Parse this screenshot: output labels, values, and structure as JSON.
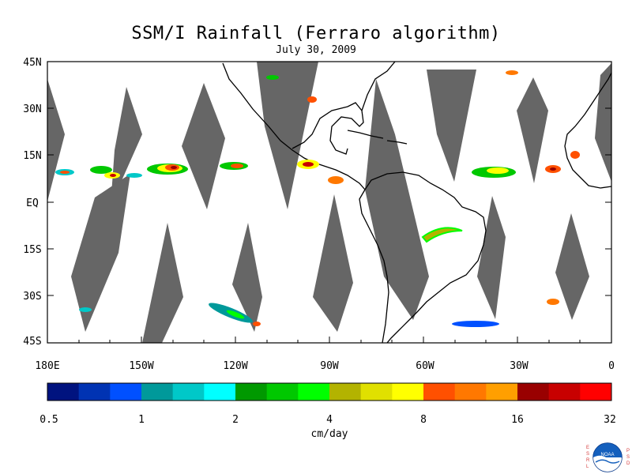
{
  "header": {
    "title": "SSM/I Rainfall (Ferraro algorithm)",
    "date": "July 30, 2009"
  },
  "map": {
    "lat_labels": [
      "45N",
      "30N",
      "15N",
      "EQ",
      "15S",
      "30S",
      "45S"
    ],
    "lon_labels": [
      "180E",
      "150W",
      "120W",
      "90W",
      "60W",
      "30W",
      "0"
    ],
    "land_color": "#ffffff",
    "missing_color": "#666666",
    "coastline_color": "#000000"
  },
  "colorbar": {
    "colors": [
      "#00137f",
      "#0033b3",
      "#0050ff",
      "#00999a",
      "#00c8c8",
      "#00ffff",
      "#009900",
      "#00c800",
      "#00ff00",
      "#b3b300",
      "#e0e000",
      "#ffff00",
      "#ff5000",
      "#ff7800",
      "#ff9f00",
      "#990000",
      "#c80000",
      "#ff0000"
    ],
    "tick_labels": [
      "0.5",
      "1",
      "2",
      "4",
      "8",
      "16",
      "32"
    ],
    "unit_label": "cm/day"
  },
  "logo": {
    "left_letters": "ESRL",
    "right_letters": "PSD",
    "center_text": "NOAA"
  }
}
